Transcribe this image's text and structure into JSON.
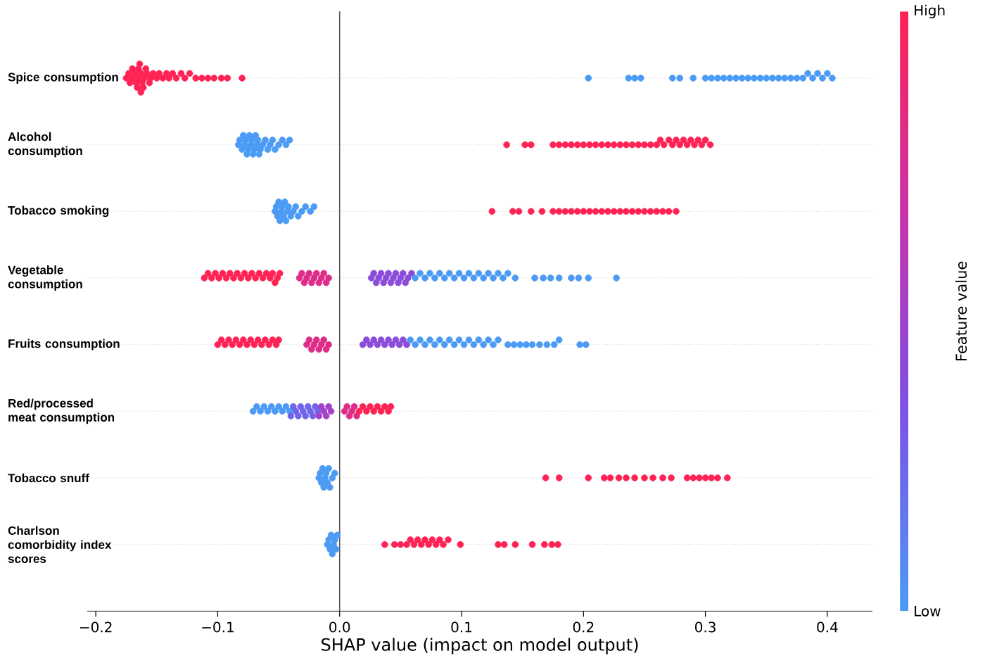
{
  "chart_data": {
    "type": "scatter",
    "orientation": "horizontal",
    "marker": "circle",
    "grid": "y",
    "categories": [
      "Spice consumption",
      "Alcohol consumption",
      "Tobacco smoking",
      "Vegetable consumption",
      "Fruits consumption",
      "Red/processed meat consumption",
      "Tobacco snuff",
      "Charlson comorbidity index scores"
    ],
    "series": [
      {
        "x": [
          "Spice consumption",
          "Spice consumption",
          "Spice consumption",
          "Spice consumption",
          "Spice consumption",
          "Spice consumption",
          "Spice consumption",
          "Spice consumption",
          "Spice consumption",
          "Spice consumption",
          "Spice consumption",
          "Spice consumption",
          "Spice consumption",
          "Spice consumption",
          "Spice consumption",
          "Spice consumption",
          "Spice consumption",
          "Spice consumption",
          "Spice consumption",
          "Spice consumption",
          "Spice consumption",
          "Spice consumption",
          "Spice consumption",
          "Spice consumption",
          "Spice consumption",
          "Spice consumption",
          "Spice consumption",
          "Spice consumption",
          "Spice consumption",
          "Spice consumption",
          "Spice consumption",
          "Spice consumption",
          "Spice consumption",
          "Spice consumption",
          "Spice consumption",
          "Spice consumption",
          "Spice consumption",
          "Spice consumption"
        ],
        "values": [
          -0.175,
          -0.173,
          -0.172,
          -0.17,
          -0.17,
          -0.168,
          -0.167,
          -0.166,
          -0.165,
          -0.165,
          -0.164,
          -0.163,
          -0.163,
          -0.162,
          -0.161,
          -0.16,
          -0.159,
          -0.158,
          -0.156,
          -0.155,
          -0.153,
          -0.15,
          -0.148,
          -0.145,
          -0.142,
          -0.14,
          -0.137,
          -0.134,
          -0.13,
          -0.127,
          -0.123,
          -0.118,
          -0.113,
          -0.108,
          -0.103,
          -0.097,
          -0.092,
          -0.08
        ],
        "cvalues": [
          1,
          1,
          1,
          1,
          1,
          1,
          1,
          1,
          1,
          1,
          1,
          1,
          1,
          1,
          1,
          1,
          1,
          1,
          1,
          1,
          1,
          1,
          1,
          1,
          1,
          1,
          1,
          1,
          1,
          1,
          1,
          1,
          1,
          1,
          1,
          1,
          1,
          1
        ]
      },
      {
        "x": [
          "Spice consumption",
          "Spice consumption",
          "Spice consumption",
          "Spice consumption",
          "Spice consumption",
          "Spice consumption",
          "Spice consumption",
          "Spice consumption",
          "Spice consumption",
          "Spice consumption",
          "Spice consumption",
          "Spice consumption",
          "Spice consumption",
          "Spice consumption",
          "Spice consumption",
          "Spice consumption",
          "Spice consumption",
          "Spice consumption",
          "Spice consumption",
          "Spice consumption",
          "Spice consumption",
          "Spice consumption",
          "Spice consumption",
          "Spice consumption",
          "Spice consumption",
          "Spice consumption",
          "Spice consumption",
          "Spice consumption",
          "Spice consumption",
          "Spice consumption"
        ],
        "values": [
          0.204,
          0.237,
          0.242,
          0.247,
          0.273,
          0.279,
          0.29,
          0.3,
          0.305,
          0.31,
          0.315,
          0.32,
          0.325,
          0.33,
          0.335,
          0.34,
          0.345,
          0.35,
          0.355,
          0.36,
          0.365,
          0.37,
          0.375,
          0.38,
          0.384,
          0.388,
          0.392,
          0.396,
          0.4,
          0.404
        ],
        "cvalues": [
          0,
          0,
          0,
          0,
          0,
          0,
          0,
          0,
          0,
          0,
          0,
          0,
          0,
          0,
          0,
          0,
          0,
          0,
          0,
          0,
          0,
          0,
          0,
          0,
          0,
          0,
          0,
          0,
          0,
          0
        ]
      },
      {
        "x": [
          "Alcohol consumption",
          "Alcohol consumption",
          "Alcohol consumption",
          "Alcohol consumption",
          "Alcohol consumption",
          "Alcohol consumption",
          "Alcohol consumption",
          "Alcohol consumption",
          "Alcohol consumption",
          "Alcohol consumption",
          "Alcohol consumption",
          "Alcohol consumption",
          "Alcohol consumption",
          "Alcohol consumption",
          "Alcohol consumption",
          "Alcohol consumption",
          "Alcohol consumption",
          "Alcohol consumption",
          "Alcohol consumption",
          "Alcohol consumption",
          "Alcohol consumption",
          "Alcohol consumption",
          "Alcohol consumption",
          "Alcohol consumption",
          "Alcohol consumption",
          "Alcohol consumption",
          "Alcohol consumption",
          "Alcohol consumption"
        ],
        "values": [
          -0.083,
          -0.082,
          -0.08,
          -0.079,
          -0.078,
          -0.077,
          -0.076,
          -0.075,
          -0.074,
          -0.073,
          -0.072,
          -0.071,
          -0.07,
          -0.069,
          -0.068,
          -0.067,
          -0.066,
          -0.065,
          -0.063,
          -0.061,
          -0.059,
          -0.057,
          -0.055,
          -0.053,
          -0.05,
          -0.047,
          -0.044,
          -0.041
        ],
        "cvalues": [
          0,
          0,
          0,
          0,
          0,
          0,
          0,
          0,
          0,
          0,
          0,
          0,
          0,
          0,
          0,
          0,
          0,
          0,
          0,
          0,
          0,
          0,
          0,
          0,
          0,
          0,
          0,
          0
        ]
      },
      {
        "x": [
          "Alcohol consumption",
          "Alcohol consumption",
          "Alcohol consumption",
          "Alcohol consumption",
          "Alcohol consumption",
          "Alcohol consumption",
          "Alcohol consumption",
          "Alcohol consumption",
          "Alcohol consumption",
          "Alcohol consumption",
          "Alcohol consumption",
          "Alcohol consumption",
          "Alcohol consumption",
          "Alcohol consumption",
          "Alcohol consumption",
          "Alcohol consumption",
          "Alcohol consumption",
          "Alcohol consumption",
          "Alcohol consumption",
          "Alcohol consumption",
          "Alcohol consumption",
          "Alcohol consumption",
          "Alcohol consumption",
          "Alcohol consumption",
          "Alcohol consumption",
          "Alcohol consumption",
          "Alcohol consumption",
          "Alcohol consumption",
          "Alcohol consumption",
          "Alcohol consumption",
          "Alcohol consumption",
          "Alcohol consumption",
          "Alcohol consumption",
          "Alcohol consumption",
          "Alcohol consumption"
        ],
        "values": [
          0.137,
          0.152,
          0.157,
          0.175,
          0.18,
          0.185,
          0.19,
          0.195,
          0.2,
          0.205,
          0.21,
          0.215,
          0.22,
          0.225,
          0.23,
          0.235,
          0.24,
          0.245,
          0.25,
          0.255,
          0.26,
          0.263,
          0.266,
          0.27,
          0.273,
          0.276,
          0.279,
          0.282,
          0.285,
          0.288,
          0.291,
          0.294,
          0.297,
          0.3,
          0.304
        ],
        "cvalues": [
          1,
          1,
          1,
          1,
          1,
          1,
          1,
          1,
          1,
          1,
          1,
          1,
          1,
          1,
          1,
          1,
          1,
          1,
          1,
          1,
          1,
          1,
          1,
          1,
          1,
          1,
          1,
          1,
          1,
          1,
          1,
          1,
          1,
          1,
          1
        ]
      },
      {
        "x": [
          "Tobacco smoking",
          "Tobacco smoking",
          "Tobacco smoking",
          "Tobacco smoking",
          "Tobacco smoking",
          "Tobacco smoking",
          "Tobacco smoking",
          "Tobacco smoking",
          "Tobacco smoking",
          "Tobacco smoking",
          "Tobacco smoking",
          "Tobacco smoking",
          "Tobacco smoking",
          "Tobacco smoking",
          "Tobacco smoking",
          "Tobacco smoking",
          "Tobacco smoking",
          "Tobacco smoking",
          "Tobacco smoking",
          "Tobacco smoking"
        ],
        "values": [
          -0.053,
          -0.052,
          -0.051,
          -0.05,
          -0.049,
          -0.048,
          -0.047,
          -0.046,
          -0.045,
          -0.044,
          -0.043,
          -0.042,
          -0.04,
          -0.038,
          -0.036,
          -0.034,
          -0.031,
          -0.028,
          -0.024,
          -0.021
        ],
        "cvalues": [
          0,
          0,
          0,
          0,
          0,
          0,
          0,
          0,
          0,
          0,
          0,
          0,
          0,
          0,
          0,
          0,
          0,
          0,
          0,
          0
        ]
      },
      {
        "x": [
          "Tobacco smoking",
          "Tobacco smoking",
          "Tobacco smoking",
          "Tobacco smoking",
          "Tobacco smoking",
          "Tobacco smoking",
          "Tobacco smoking",
          "Tobacco smoking",
          "Tobacco smoking",
          "Tobacco smoking",
          "Tobacco smoking",
          "Tobacco smoking",
          "Tobacco smoking",
          "Tobacco smoking",
          "Tobacco smoking",
          "Tobacco smoking",
          "Tobacco smoking",
          "Tobacco smoking",
          "Tobacco smoking",
          "Tobacco smoking",
          "Tobacco smoking",
          "Tobacco smoking",
          "Tobacco smoking",
          "Tobacco smoking",
          "Tobacco smoking",
          "Tobacco smoking"
        ],
        "values": [
          0.125,
          0.142,
          0.147,
          0.157,
          0.166,
          0.175,
          0.18,
          0.185,
          0.19,
          0.195,
          0.2,
          0.205,
          0.21,
          0.215,
          0.22,
          0.225,
          0.23,
          0.235,
          0.24,
          0.245,
          0.25,
          0.255,
          0.26,
          0.265,
          0.27,
          0.276
        ],
        "cvalues": [
          1,
          1,
          1,
          1,
          1,
          1,
          1,
          1,
          1,
          1,
          1,
          1,
          1,
          1,
          1,
          1,
          1,
          1,
          1,
          1,
          1,
          1,
          1,
          1,
          1,
          1
        ]
      },
      {
        "x": [
          "Vegetable consumption",
          "Vegetable consumption",
          "Vegetable consumption",
          "Vegetable consumption",
          "Vegetable consumption",
          "Vegetable consumption",
          "Vegetable consumption",
          "Vegetable consumption",
          "Vegetable consumption",
          "Vegetable consumption",
          "Vegetable consumption",
          "Vegetable consumption",
          "Vegetable consumption",
          "Vegetable consumption",
          "Vegetable consumption",
          "Vegetable consumption",
          "Vegetable consumption",
          "Vegetable consumption",
          "Vegetable consumption",
          "Vegetable consumption",
          "Vegetable consumption",
          "Vegetable consumption",
          "Vegetable consumption"
        ],
        "values": [
          -0.111,
          -0.108,
          -0.105,
          -0.102,
          -0.099,
          -0.096,
          -0.093,
          -0.09,
          -0.087,
          -0.084,
          -0.081,
          -0.078,
          -0.075,
          -0.072,
          -0.069,
          -0.066,
          -0.063,
          -0.06,
          -0.057,
          -0.055,
          -0.053,
          -0.051,
          -0.049
        ],
        "cvalues": [
          1,
          1,
          1,
          1,
          1,
          1,
          1,
          1,
          1,
          1,
          1,
          1,
          1,
          1,
          1,
          1,
          1,
          1,
          1,
          1,
          1,
          1,
          1
        ]
      },
      {
        "x": [
          "Vegetable consumption",
          "Vegetable consumption",
          "Vegetable consumption",
          "Vegetable consumption",
          "Vegetable consumption",
          "Vegetable consumption",
          "Vegetable consumption",
          "Vegetable consumption",
          "Vegetable consumption",
          "Vegetable consumption",
          "Vegetable consumption",
          "Vegetable consumption",
          "Vegetable consumption"
        ],
        "values": [
          -0.033,
          -0.031,
          -0.029,
          -0.027,
          -0.025,
          -0.023,
          -0.021,
          -0.019,
          -0.017,
          -0.015,
          -0.013,
          -0.011,
          -0.009
        ],
        "cvalues": [
          0.8,
          0.8,
          0.8,
          0.8,
          0.8,
          0.8,
          0.8,
          0.8,
          0.8,
          0.8,
          0.8,
          0.8,
          0.8
        ]
      },
      {
        "x": [
          "Vegetable consumption",
          "Vegetable consumption",
          "Vegetable consumption",
          "Vegetable consumption",
          "Vegetable consumption",
          "Vegetable consumption",
          "Vegetable consumption",
          "Vegetable consumption",
          "Vegetable consumption",
          "Vegetable consumption",
          "Vegetable consumption",
          "Vegetable consumption",
          "Vegetable consumption",
          "Vegetable consumption",
          "Vegetable consumption",
          "Vegetable consumption",
          "Vegetable consumption"
        ],
        "values": [
          0.026,
          0.028,
          0.03,
          0.032,
          0.034,
          0.036,
          0.038,
          0.04,
          0.042,
          0.044,
          0.046,
          0.048,
          0.05,
          0.052,
          0.054,
          0.056,
          0.059
        ],
        "cvalues": [
          0.4,
          0.4,
          0.4,
          0.4,
          0.4,
          0.4,
          0.4,
          0.4,
          0.4,
          0.4,
          0.4,
          0.4,
          0.4,
          0.4,
          0.4,
          0.4,
          0.4
        ]
      },
      {
        "x": [
          "Vegetable consumption",
          "Vegetable consumption",
          "Vegetable consumption",
          "Vegetable consumption",
          "Vegetable consumption",
          "Vegetable consumption",
          "Vegetable consumption",
          "Vegetable consumption",
          "Vegetable consumption",
          "Vegetable consumption",
          "Vegetable consumption",
          "Vegetable consumption",
          "Vegetable consumption",
          "Vegetable consumption",
          "Vegetable consumption",
          "Vegetable consumption",
          "Vegetable consumption",
          "Vegetable consumption",
          "Vegetable consumption",
          "Vegetable consumption",
          "Vegetable consumption",
          "Vegetable consumption",
          "Vegetable consumption",
          "Vegetable consumption",
          "Vegetable consumption",
          "Vegetable consumption",
          "Vegetable consumption",
          "Vegetable consumption",
          "Vegetable consumption"
        ],
        "values": [
          0.062,
          0.066,
          0.07,
          0.074,
          0.078,
          0.082,
          0.086,
          0.09,
          0.094,
          0.098,
          0.102,
          0.106,
          0.11,
          0.114,
          0.118,
          0.122,
          0.126,
          0.13,
          0.134,
          0.138,
          0.144,
          0.16,
          0.167,
          0.173,
          0.18,
          0.19,
          0.196,
          0.204,
          0.227
        ],
        "cvalues": [
          0,
          0,
          0,
          0,
          0,
          0,
          0,
          0,
          0,
          0,
          0,
          0,
          0,
          0,
          0,
          0,
          0,
          0,
          0,
          0,
          0,
          0,
          0,
          0,
          0,
          0,
          0,
          0,
          0
        ]
      },
      {
        "x": [
          "Fruits consumption",
          "Fruits consumption",
          "Fruits consumption",
          "Fruits consumption",
          "Fruits consumption",
          "Fruits consumption",
          "Fruits consumption",
          "Fruits consumption",
          "Fruits consumption",
          "Fruits consumption",
          "Fruits consumption",
          "Fruits consumption",
          "Fruits consumption",
          "Fruits consumption",
          "Fruits consumption",
          "Fruits consumption",
          "Fruits consumption",
          "Fruits consumption"
        ],
        "values": [
          -0.1,
          -0.097,
          -0.094,
          -0.091,
          -0.088,
          -0.085,
          -0.082,
          -0.079,
          -0.076,
          -0.073,
          -0.07,
          -0.067,
          -0.064,
          -0.061,
          -0.058,
          -0.055,
          -0.052,
          -0.05
        ],
        "cvalues": [
          1,
          1,
          1,
          1,
          1,
          1,
          1,
          1,
          1,
          1,
          1,
          1,
          1,
          1,
          1,
          1,
          1,
          1
        ]
      },
      {
        "x": [
          "Fruits consumption",
          "Fruits consumption",
          "Fruits consumption",
          "Fruits consumption",
          "Fruits consumption",
          "Fruits consumption",
          "Fruits consumption",
          "Fruits consumption",
          "Fruits consumption",
          "Fruits consumption"
        ],
        "values": [
          -0.027,
          -0.025,
          -0.023,
          -0.021,
          -0.019,
          -0.017,
          -0.015,
          -0.013,
          -0.011,
          -0.009
        ],
        "cvalues": [
          0.8,
          0.8,
          0.8,
          0.8,
          0.8,
          0.8,
          0.8,
          0.8,
          0.8,
          0.8
        ]
      },
      {
        "x": [
          "Fruits consumption",
          "Fruits consumption",
          "Fruits consumption",
          "Fruits consumption",
          "Fruits consumption",
          "Fruits consumption",
          "Fruits consumption",
          "Fruits consumption",
          "Fruits consumption",
          "Fruits consumption",
          "Fruits consumption",
          "Fruits consumption",
          "Fruits consumption"
        ],
        "values": [
          0.019,
          0.022,
          0.025,
          0.028,
          0.031,
          0.034,
          0.037,
          0.04,
          0.043,
          0.046,
          0.049,
          0.052,
          0.055
        ],
        "cvalues": [
          0.4,
          0.4,
          0.4,
          0.4,
          0.4,
          0.4,
          0.4,
          0.4,
          0.4,
          0.4,
          0.4,
          0.4,
          0.4
        ]
      },
      {
        "x": [
          "Fruits consumption",
          "Fruits consumption",
          "Fruits consumption",
          "Fruits consumption",
          "Fruits consumption",
          "Fruits consumption",
          "Fruits consumption",
          "Fruits consumption",
          "Fruits consumption",
          "Fruits consumption",
          "Fruits consumption",
          "Fruits consumption",
          "Fruits consumption",
          "Fruits consumption",
          "Fruits consumption",
          "Fruits consumption",
          "Fruits consumption",
          "Fruits consumption",
          "Fruits consumption",
          "Fruits consumption",
          "Fruits consumption",
          "Fruits consumption",
          "Fruits consumption",
          "Fruits consumption",
          "Fruits consumption",
          "Fruits consumption",
          "Fruits consumption",
          "Fruits consumption",
          "Fruits consumption",
          "Fruits consumption"
        ],
        "values": [
          0.058,
          0.062,
          0.066,
          0.07,
          0.074,
          0.078,
          0.082,
          0.086,
          0.09,
          0.094,
          0.098,
          0.102,
          0.106,
          0.11,
          0.114,
          0.118,
          0.122,
          0.126,
          0.13,
          0.138,
          0.143,
          0.148,
          0.153,
          0.158,
          0.164,
          0.17,
          0.176,
          0.18,
          0.197,
          0.202
        ],
        "cvalues": [
          0,
          0,
          0,
          0,
          0,
          0,
          0,
          0,
          0,
          0,
          0,
          0,
          0,
          0,
          0,
          0,
          0,
          0,
          0,
          0,
          0,
          0,
          0,
          0,
          0,
          0,
          0,
          0,
          0,
          0
        ]
      },
      {
        "x": [
          "Red/processed meat consumption",
          "Red/processed meat consumption",
          "Red/processed meat consumption",
          "Red/processed meat consumption",
          "Red/processed meat consumption",
          "Red/processed meat consumption",
          "Red/processed meat consumption",
          "Red/processed meat consumption",
          "Red/processed meat consumption",
          "Red/processed meat consumption",
          "Red/processed meat consumption"
        ],
        "values": [
          -0.071,
          -0.068,
          -0.065,
          -0.062,
          -0.059,
          -0.056,
          -0.053,
          -0.05,
          -0.047,
          -0.044,
          -0.041
        ],
        "cvalues": [
          0,
          0,
          0,
          0,
          0,
          0,
          0,
          0,
          0,
          0,
          0
        ]
      },
      {
        "x": [
          "Red/processed meat consumption",
          "Red/processed meat consumption",
          "Red/processed meat consumption",
          "Red/processed meat consumption",
          "Red/processed meat consumption",
          "Red/processed meat consumption",
          "Red/processed meat consumption",
          "Red/processed meat consumption",
          "Red/processed meat consumption",
          "Red/processed meat consumption",
          "Red/processed meat consumption",
          "Red/processed meat consumption"
        ],
        "values": [
          -0.04,
          -0.038,
          -0.036,
          -0.034,
          -0.032,
          -0.03,
          -0.028,
          -0.026,
          -0.024,
          -0.022,
          -0.02,
          -0.018
        ],
        "cvalues": [
          0.25,
          0.25,
          0.25,
          0.25,
          0.25,
          0.25,
          0.25,
          0.25,
          0.25,
          0.25,
          0.25,
          0.25
        ]
      },
      {
        "x": [
          "Red/processed meat consumption",
          "Red/processed meat consumption",
          "Red/processed meat consumption",
          "Red/processed meat consumption",
          "Red/processed meat consumption",
          "Red/processed meat consumption"
        ],
        "values": [
          -0.017,
          -0.015,
          -0.013,
          -0.011,
          -0.009,
          -0.007
        ],
        "cvalues": [
          0.5,
          0.5,
          0.5,
          0.5,
          0.5,
          0.5
        ]
      },
      {
        "x": [
          "Red/processed meat consumption",
          "Red/processed meat consumption",
          "Red/processed meat consumption",
          "Red/processed meat consumption",
          "Red/processed meat consumption",
          "Red/processed meat consumption"
        ],
        "values": [
          0.004,
          0.006,
          0.008,
          0.01,
          0.012,
          0.014
        ],
        "cvalues": [
          0.8,
          0.8,
          0.8,
          0.8,
          0.8,
          0.8
        ]
      },
      {
        "x": [
          "Red/processed meat consumption",
          "Red/processed meat consumption",
          "Red/processed meat consumption",
          "Red/processed meat consumption",
          "Red/processed meat consumption",
          "Red/processed meat consumption",
          "Red/processed meat consumption",
          "Red/processed meat consumption",
          "Red/processed meat consumption",
          "Red/processed meat consumption"
        ],
        "values": [
          0.016,
          0.019,
          0.022,
          0.025,
          0.028,
          0.031,
          0.034,
          0.037,
          0.04,
          0.042
        ],
        "cvalues": [
          1,
          1,
          1,
          1,
          1,
          1,
          1,
          1,
          1,
          1
        ]
      },
      {
        "x": [
          "Tobacco snuff",
          "Tobacco snuff",
          "Tobacco snuff",
          "Tobacco snuff",
          "Tobacco snuff",
          "Tobacco snuff",
          "Tobacco snuff",
          "Tobacco snuff",
          "Tobacco snuff",
          "Tobacco snuff",
          "Tobacco snuff",
          "Tobacco snuff"
        ],
        "values": [
          -0.017,
          -0.016,
          -0.015,
          -0.014,
          -0.013,
          -0.012,
          -0.011,
          -0.01,
          -0.009,
          -0.008,
          -0.006,
          -0.004
        ],
        "cvalues": [
          0,
          0,
          0,
          0,
          0,
          0,
          0,
          0,
          0,
          0,
          0,
          0
        ]
      },
      {
        "x": [
          "Tobacco snuff",
          "Tobacco snuff",
          "Tobacco snuff",
          "Tobacco snuff",
          "Tobacco snuff",
          "Tobacco snuff",
          "Tobacco snuff",
          "Tobacco snuff",
          "Tobacco snuff",
          "Tobacco snuff",
          "Tobacco snuff",
          "Tobacco snuff",
          "Tobacco snuff",
          "Tobacco snuff",
          "Tobacco snuff",
          "Tobacco snuff",
          "Tobacco snuff",
          "Tobacco snuff",
          "Tobacco snuff"
        ],
        "values": [
          0.169,
          0.18,
          0.204,
          0.217,
          0.222,
          0.229,
          0.235,
          0.242,
          0.25,
          0.257,
          0.265,
          0.272,
          0.285,
          0.29,
          0.295,
          0.3,
          0.305,
          0.31,
          0.318
        ],
        "cvalues": [
          1,
          1,
          1,
          1,
          1,
          1,
          1,
          1,
          1,
          1,
          1,
          1,
          1,
          1,
          1,
          1,
          1,
          1,
          1
        ]
      },
      {
        "x": [
          "Charlson comorbidity index scores",
          "Charlson comorbidity index scores",
          "Charlson comorbidity index scores",
          "Charlson comorbidity index scores",
          "Charlson comorbidity index scores",
          "Charlson comorbidity index scores",
          "Charlson comorbidity index scores",
          "Charlson comorbidity index scores",
          "Charlson comorbidity index scores"
        ],
        "values": [
          -0.01,
          -0.009,
          -0.008,
          -0.007,
          -0.006,
          -0.005,
          -0.004,
          -0.003,
          -0.002
        ],
        "cvalues": [
          0,
          0,
          0,
          0,
          0,
          0,
          0,
          0,
          0
        ]
      },
      {
        "x": [
          "Charlson comorbidity index scores",
          "Charlson comorbidity index scores",
          "Charlson comorbidity index scores",
          "Charlson comorbidity index scores",
          "Charlson comorbidity index scores",
          "Charlson comorbidity index scores",
          "Charlson comorbidity index scores",
          "Charlson comorbidity index scores",
          "Charlson comorbidity index scores",
          "Charlson comorbidity index scores",
          "Charlson comorbidity index scores",
          "Charlson comorbidity index scores",
          "Charlson comorbidity index scores",
          "Charlson comorbidity index scores",
          "Charlson comorbidity index scores",
          "Charlson comorbidity index scores",
          "Charlson comorbidity index scores",
          "Charlson comorbidity index scores",
          "Charlson comorbidity index scores",
          "Charlson comorbidity index scores",
          "Charlson comorbidity index scores",
          "Charlson comorbidity index scores",
          "Charlson comorbidity index scores"
        ],
        "values": [
          0.037,
          0.045,
          0.05,
          0.055,
          0.058,
          0.061,
          0.064,
          0.067,
          0.07,
          0.073,
          0.076,
          0.079,
          0.082,
          0.085,
          0.089,
          0.099,
          0.13,
          0.135,
          0.144,
          0.158,
          0.168,
          0.174,
          0.179
        ],
        "cvalues": [
          1,
          1,
          1,
          1,
          1,
          1,
          1,
          1,
          1,
          1,
          1,
          1,
          1,
          1,
          1,
          1,
          1,
          1,
          1,
          1,
          1,
          1,
          1
        ]
      }
    ],
    "xlim": [
      -0.207,
      0.437
    ],
    "xticks": [
      {
        "value": -0.2,
        "label": "−0.2"
      },
      {
        "value": -0.1,
        "label": "−0.1"
      },
      {
        "value": 0,
        "label": "0.0"
      },
      {
        "value": 0.1,
        "label": "0.1"
      },
      {
        "value": 0.2,
        "label": "0.2"
      },
      {
        "value": 0.3,
        "label": "0.3"
      },
      {
        "value": 0.4,
        "label": "0.4"
      }
    ],
    "xlabel": "SHAP value (impact on model output)",
    "clabel": "Feature value",
    "clim": [
      0,
      1
    ],
    "cticks": [
      {
        "value": 0,
        "label": "Low"
      },
      {
        "value": 1,
        "label": "High"
      }
    ],
    "ref_lines": [
      {
        "axis": "x",
        "value": 0,
        "color": "#555555"
      }
    ]
  }
}
